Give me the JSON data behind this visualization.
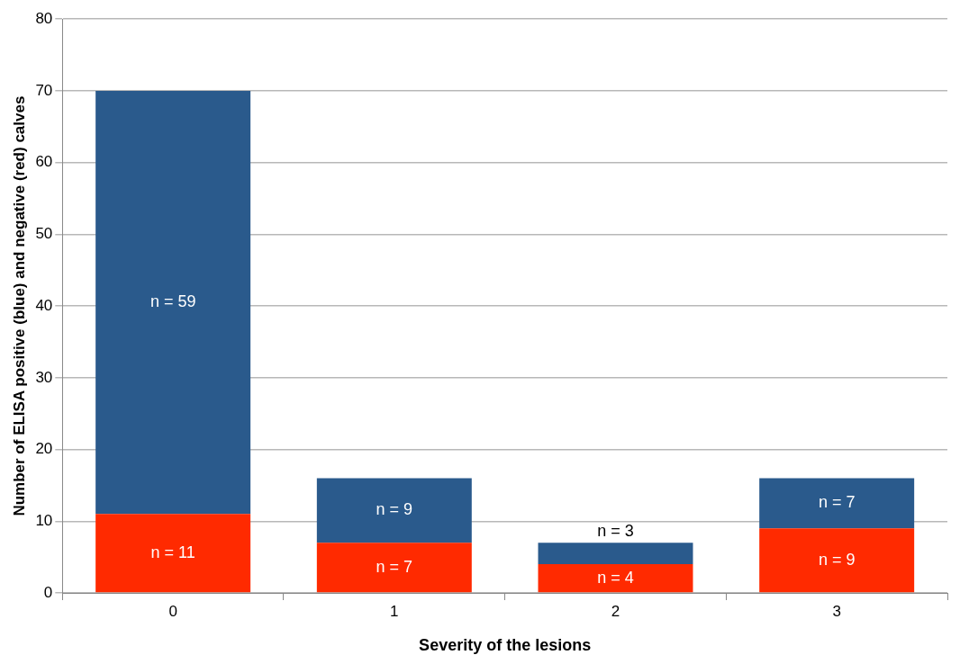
{
  "chart_data": {
    "type": "bar",
    "stacked": true,
    "xlabel": "Severity of the lesions",
    "ylabel": "Number of ELISA positive (blue) and negative (red) calves",
    "categories": [
      "0",
      "1",
      "2",
      "3"
    ],
    "series": [
      {
        "color": "#ff2a00",
        "values": [
          11,
          7,
          4,
          9
        ],
        "value_labels": [
          "n = 11",
          "n = 7",
          "n = 4",
          "n = 9"
        ]
      },
      {
        "color": "#2a5a8c",
        "values": [
          59,
          9,
          3,
          7
        ],
        "value_labels": [
          "n = 59",
          "n = 9",
          "n = 3",
          "n = 7"
        ]
      }
    ],
    "ylim": [
      0,
      80
    ],
    "yticks": [
      0,
      10,
      20,
      30,
      40,
      50,
      60,
      70,
      80
    ],
    "grid": "y",
    "legend": false
  }
}
